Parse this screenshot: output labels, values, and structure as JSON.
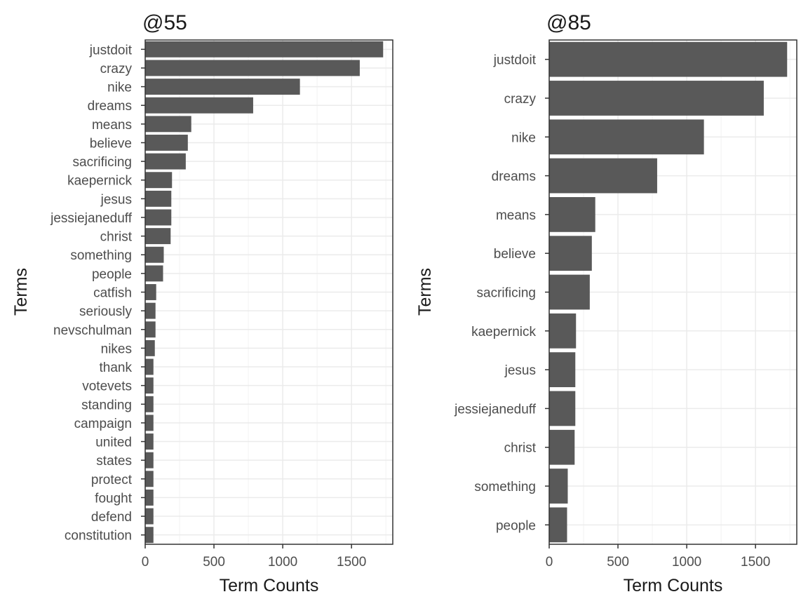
{
  "chart_data": [
    {
      "type": "bar",
      "orientation": "horizontal",
      "title": "@55",
      "xlabel": "Term Counts",
      "ylabel": "Terms",
      "xlim": [
        0,
        1800
      ],
      "xticks": [
        0,
        500,
        1000,
        1500
      ],
      "grid": true,
      "bar_color": "#595959",
      "categories": [
        "justdoit",
        "crazy",
        "nike",
        "dreams",
        "means",
        "believe",
        "sacrificing",
        "kaepernick",
        "jesus",
        "jessiejaneduff",
        "christ",
        "something",
        "people",
        "catfish",
        "seriously",
        "nevschulman",
        "nikes",
        "thank",
        "votevets",
        "standing",
        "campaign",
        "united",
        "states",
        "protect",
        "fought",
        "defend",
        "constitution"
      ],
      "values": [
        1730,
        1560,
        1125,
        785,
        335,
        310,
        295,
        195,
        190,
        190,
        185,
        135,
        130,
        80,
        75,
        75,
        70,
        60,
        60,
        60,
        60,
        60,
        60,
        60,
        60,
        60,
        60
      ]
    },
    {
      "type": "bar",
      "orientation": "horizontal",
      "title": "@85",
      "xlabel": "Term Counts",
      "ylabel": "Terms",
      "xlim": [
        0,
        1800
      ],
      "xticks": [
        0,
        500,
        1000,
        1500
      ],
      "grid": true,
      "bar_color": "#595959",
      "categories": [
        "justdoit",
        "crazy",
        "nike",
        "dreams",
        "means",
        "believe",
        "sacrificing",
        "kaepernick",
        "jesus",
        "jessiejaneduff",
        "christ",
        "something",
        "people"
      ],
      "values": [
        1730,
        1560,
        1125,
        785,
        335,
        310,
        295,
        195,
        190,
        190,
        185,
        135,
        130
      ]
    }
  ]
}
